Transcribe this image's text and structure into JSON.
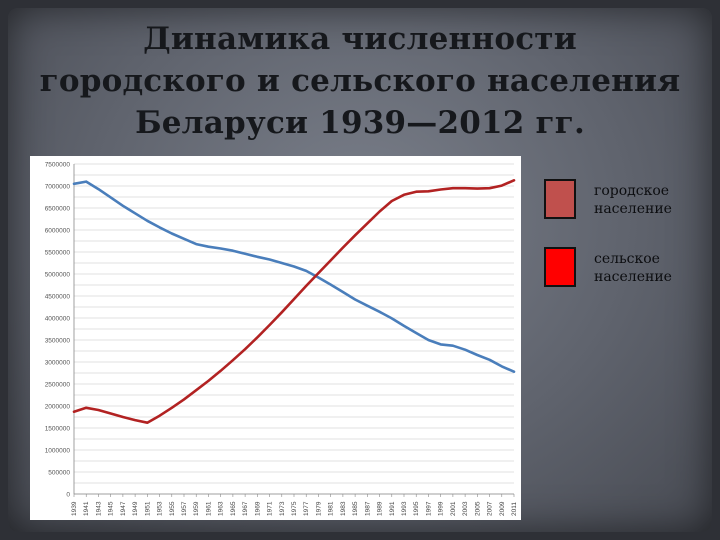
{
  "title_lines": [
    "Динамика численности",
    "городского и сельского населения",
    "Беларуси 1939—2012 гг."
  ],
  "colors": {
    "urban_line": "#4a7ebb",
    "rural_line": "#b22222",
    "legend_urban_swatch": "#c0504d",
    "legend_rural_swatch": "#ff0000"
  },
  "legend": [
    {
      "label": "городское\nнаселение",
      "color": "#c0504d"
    },
    {
      "label": "сельское\nнаселение",
      "color": "#ff0000"
    }
  ],
  "chart_data": {
    "type": "line",
    "title": "",
    "xlabel": "",
    "ylabel": "",
    "ylim": [
      0,
      7500000
    ],
    "ytick_step": 250000,
    "grid": true,
    "legend_placement": "right",
    "categories": [
      "1939",
      "1941",
      "1943",
      "1945",
      "1947",
      "1949",
      "1951",
      "1953",
      "1955",
      "1957",
      "1959",
      "1961",
      "1963",
      "1965",
      "1967",
      "1969",
      "1971",
      "1973",
      "1975",
      "1977",
      "1979",
      "1981",
      "1983",
      "1985",
      "1987",
      "1989",
      "1991",
      "1993",
      "1995",
      "1997",
      "1999",
      "2001",
      "2003",
      "2005",
      "2007",
      "2009",
      "2011"
    ],
    "series": [
      {
        "color": "#4a7ebb",
        "values": [
          7050000,
          7100000,
          6930000,
          6740000,
          6550000,
          6380000,
          6210000,
          6060000,
          5920000,
          5800000,
          5680000,
          5620000,
          5580000,
          5530000,
          5460000,
          5390000,
          5330000,
          5250000,
          5170000,
          5070000,
          4920000,
          4760000,
          4590000,
          4420000,
          4280000,
          4140000,
          3990000,
          3820000,
          3660000,
          3500000,
          3400000,
          3370000,
          3280000,
          3160000,
          3050000,
          2900000,
          2780000
        ]
      },
      {
        "color": "#b22222",
        "values": [
          1870000,
          1960000,
          1910000,
          1830000,
          1750000,
          1680000,
          1620000,
          1780000,
          1960000,
          2150000,
          2360000,
          2570000,
          2800000,
          3040000,
          3290000,
          3560000,
          3840000,
          4130000,
          4430000,
          4730000,
          5020000,
          5310000,
          5600000,
          5880000,
          6150000,
          6420000,
          6660000,
          6800000,
          6870000,
          6880000,
          6920000,
          6950000,
          6950000,
          6940000,
          6950000,
          7010000,
          7130000
        ]
      }
    ]
  }
}
